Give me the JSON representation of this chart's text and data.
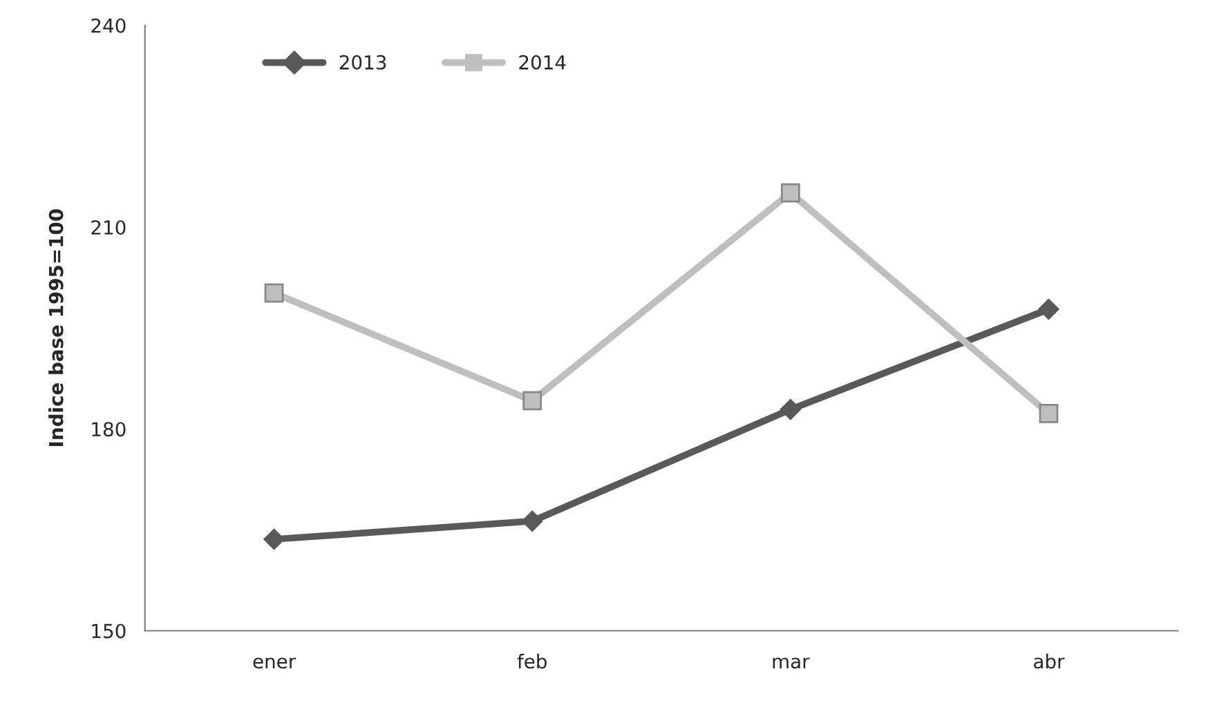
{
  "chart_data": {
    "type": "line",
    "ylabel": "Indice base 1995=100",
    "categories": [
      "ener",
      "feb",
      "mar",
      "abr"
    ],
    "series": [
      {
        "name": "2013",
        "color": "#595959",
        "marker": "diamond",
        "values": [
          163.6,
          166.3,
          182.9,
          197.8
        ]
      },
      {
        "name": "2014",
        "color": "#bfbfbf",
        "marker": "square",
        "values": [
          200.2,
          184.2,
          215.1,
          182.3
        ]
      }
    ],
    "ylim": [
      150,
      240
    ],
    "yticks": [
      150,
      180,
      210,
      240
    ],
    "grid": false,
    "legend": "top left",
    "line_style": "solid"
  }
}
